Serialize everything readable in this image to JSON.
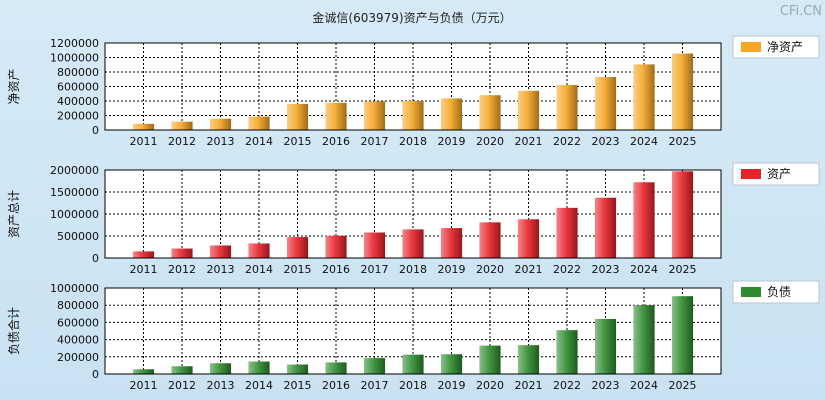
{
  "title": "金诚信(603979)资产与负债（万元）",
  "watermark": "CFi.CN",
  "chart_data": [
    {
      "type": "bar",
      "ylabel": "净资产",
      "legend": "净资产",
      "legend_position": "right",
      "color": "#f5a623",
      "grid": true,
      "ylim": [
        0,
        1200000
      ],
      "yticks": [
        0,
        200000,
        400000,
        600000,
        800000,
        1000000,
        1200000
      ],
      "categories": [
        "2011",
        "2012",
        "2013",
        "2014",
        "2015",
        "2016",
        "2017",
        "2018",
        "2019",
        "2020",
        "2021",
        "2022",
        "2023",
        "2024",
        "2025"
      ],
      "values": [
        85000,
        115000,
        155000,
        185000,
        360000,
        375000,
        395000,
        400000,
        435000,
        480000,
        540000,
        620000,
        730000,
        905000,
        1055000
      ]
    },
    {
      "type": "bar",
      "ylabel": "资产总计",
      "legend": "资产",
      "legend_position": "right",
      "color": "#e8232a",
      "grid": true,
      "ylim": [
        0,
        2000000
      ],
      "yticks": [
        0,
        500000,
        1000000,
        1500000,
        2000000
      ],
      "categories": [
        "2011",
        "2012",
        "2013",
        "2014",
        "2015",
        "2016",
        "2017",
        "2018",
        "2019",
        "2020",
        "2021",
        "2022",
        "2023",
        "2024",
        "2025"
      ],
      "values": [
        150000,
        215000,
        285000,
        330000,
        475000,
        505000,
        580000,
        650000,
        680000,
        810000,
        880000,
        1140000,
        1370000,
        1720000,
        1970000
      ]
    },
    {
      "type": "bar",
      "ylabel": "负债合计",
      "legend": "负债",
      "legend_position": "right",
      "color": "#2e8b2e",
      "grid": true,
      "ylim": [
        0,
        1000000
      ],
      "yticks": [
        0,
        200000,
        400000,
        600000,
        800000,
        1000000
      ],
      "categories": [
        "2011",
        "2012",
        "2013",
        "2014",
        "2015",
        "2016",
        "2017",
        "2018",
        "2019",
        "2020",
        "2021",
        "2022",
        "2023",
        "2024",
        "2025"
      ],
      "values": [
        55000,
        90000,
        125000,
        145000,
        110000,
        135000,
        185000,
        225000,
        230000,
        330000,
        335000,
        510000,
        640000,
        800000,
        905000
      ]
    }
  ]
}
